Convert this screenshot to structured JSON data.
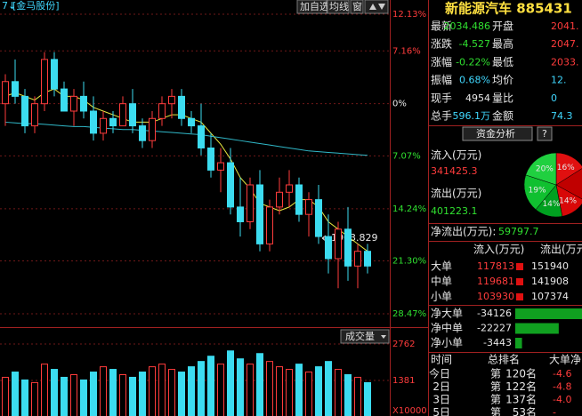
{
  "toolbar": {
    "stock_tag": "[金马股份]",
    "buttons": [
      "加自选",
      "均线",
      "窗"
    ]
  },
  "chart_data": {
    "type": "candlestick",
    "open": [
      0,
      3,
      1,
      -3,
      0,
      6,
      2,
      -1,
      1,
      -1,
      -4,
      -2,
      -3,
      0,
      -3,
      -5,
      -2,
      0,
      1,
      -2,
      -3,
      -6,
      -9,
      -8,
      -14,
      -16,
      -11,
      -19,
      -14,
      -12,
      -11,
      -15,
      -13,
      -18,
      -21,
      -17,
      -22,
      -20
    ],
    "high": [
      4,
      6,
      2,
      1,
      7,
      7,
      3,
      2,
      3,
      1,
      -1,
      -1,
      1,
      2,
      -2,
      -1,
      1,
      2,
      2,
      -1,
      0,
      -4,
      -6,
      -6,
      -10,
      -10,
      -9,
      -13,
      -10,
      -9,
      -10,
      -12,
      -11,
      -15,
      -16,
      -14,
      -19,
      -19
    ],
    "low": [
      -3,
      0,
      -4,
      -4,
      -1,
      1,
      -1,
      -3,
      -2,
      -5,
      -5,
      -4,
      -3,
      -4,
      -6,
      -6,
      -3,
      -2,
      -3,
      -4,
      -7,
      -10,
      -12,
      -15,
      -18,
      -17,
      -20,
      -20,
      -15,
      -14,
      -16,
      -18,
      -19,
      -23,
      -25,
      -24,
      -25,
      -23
    ],
    "close": [
      3,
      1,
      -3,
      0,
      6,
      2,
      -1,
      1,
      -1,
      -4,
      -2,
      -3,
      0,
      -3,
      -5,
      -2,
      0,
      1,
      -2,
      -3,
      -6,
      -9,
      -8,
      -14,
      -16,
      -11,
      -19,
      -14,
      -12,
      -11,
      -15,
      -13,
      -18,
      -21,
      -17,
      -22,
      -20,
      -22
    ],
    "up_color": "#ff3c3c",
    "down_color": "#3cdcf0",
    "ma_lines": [
      {
        "color": "#e8e840",
        "values": [
          1,
          1.5,
          1,
          0.5,
          1.5,
          2,
          1,
          1,
          0.5,
          -0.5,
          -1,
          -1.5,
          -2,
          -2.5,
          -2.5,
          -2.5,
          -2,
          -1.5,
          -1.5,
          -2,
          -2.5,
          -4,
          -5.5,
          -7.5,
          -10,
          -11.5,
          -13.5,
          -14,
          -14.5,
          -14,
          -13,
          -13,
          -14,
          -16,
          -17,
          -18,
          -19,
          -20
        ]
      },
      {
        "color": "#30b8c8",
        "values": [
          -2.5,
          -2.6,
          -2.7,
          -2.7,
          -2.8,
          -2.9,
          -3.0,
          -3.1,
          -3.1,
          -3.2,
          -3.3,
          -3.4,
          -3.5,
          -3.5,
          -3.6,
          -3.7,
          -3.8,
          -3.9,
          -4.0,
          -4.1,
          -4.2,
          -4.4,
          -4.6,
          -4.8,
          -5.0,
          -5.2,
          -5.4,
          -5.6,
          -5.8,
          -6.0,
          -6.2,
          -6.4,
          -6.5,
          -6.6,
          -6.7,
          -6.8,
          -6.9,
          -7.0
        ]
      }
    ],
    "ylim": [
      -28.47,
      12.13
    ],
    "yticks": [
      {
        "value": 12.13,
        "label": "12.13%"
      },
      {
        "value": 7.16,
        "label": "7.16%"
      },
      {
        "value": 0,
        "label": "0%"
      },
      {
        "value": -7.07,
        "label": "7.07%"
      },
      {
        "value": -14.24,
        "label": "14.24%"
      },
      {
        "value": -21.3,
        "label": "21.30%"
      },
      {
        "value": -28.47,
        "label": "28.47%"
      }
    ],
    "annotation": "1963.829",
    "volume": {
      "label": "成交量",
      "values": [
        1500,
        1700,
        1400,
        1300,
        2000,
        1800,
        1500,
        1600,
        1400,
        1700,
        1900,
        1800,
        1600,
        1500,
        1700,
        1900,
        2000,
        1800,
        1700,
        1900,
        2100,
        2300,
        2000,
        2500,
        2200,
        2000,
        2400,
        2100,
        1900,
        1800,
        2000,
        1700,
        1900,
        2100,
        1800,
        1600,
        1500,
        1300
      ],
      "ylim": [
        0,
        2762
      ],
      "yticks": [
        2762,
        1381
      ],
      "unit": "X10000"
    }
  },
  "quote": {
    "title": "新能源汽车 885431",
    "rows": [
      [
        "最新",
        "2034.486",
        "开盘",
        "2041."
      ],
      [
        "涨跌",
        "-4.527",
        "最高",
        "2047."
      ],
      [
        "涨幅",
        "-0.22%",
        "最低",
        "2033."
      ],
      [
        "振幅",
        "0.68%",
        "均价",
        "12."
      ],
      [
        "现手",
        "4954",
        "量比",
        "0"
      ],
      [
        "总手",
        "596.1万",
        "金额",
        "74.3"
      ]
    ]
  },
  "fund": {
    "tab": "资金分析",
    "help": "?",
    "inflow_label": "流入(万元)",
    "inflow": "341425.3",
    "outflow_label": "流出(万元)",
    "outflow": "401223.1",
    "pie": {
      "values": [
        16,
        17,
        14,
        14,
        19,
        20
      ],
      "labels": [
        "16%",
        null,
        "14%",
        "14%",
        "19%",
        "20%"
      ],
      "colors": [
        "#e01010",
        "#c00000",
        "#d80808",
        "#00a020",
        "#10c030",
        "#20d040"
      ]
    },
    "net_label": "净流出(万元):",
    "net_value": "59797.7"
  },
  "orders": {
    "headers": [
      "流入(万元)",
      "流出(万元)"
    ],
    "rows": [
      [
        "大单",
        "117813",
        "151940"
      ],
      [
        "中单",
        "119681",
        "141908"
      ],
      [
        "小单",
        "103930",
        "107374"
      ]
    ]
  },
  "net": [
    {
      "label": "净大单",
      "value": -34126
    },
    {
      "label": "净中单",
      "value": -22227
    },
    {
      "label": "净小单",
      "value": -3443
    }
  ],
  "rank": {
    "headers": [
      "时间",
      "总排名",
      "大单净"
    ],
    "rows": [
      [
        "今日",
        "第",
        "120名",
        "-4.6"
      ],
      [
        "2日",
        "第",
        "122名",
        "-4.8"
      ],
      [
        "3日",
        "第",
        "137名",
        "-4.0"
      ],
      [
        "5日",
        "第",
        "53名",
        "-"
      ]
    ]
  }
}
